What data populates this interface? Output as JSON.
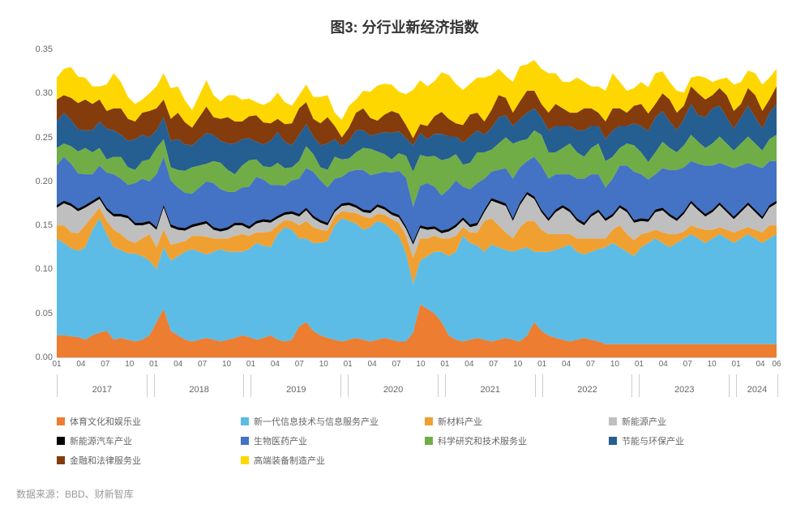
{
  "title": "图3: 分行业新经济指数",
  "source": "数据来源：BBD、财新智库",
  "chart": {
    "type": "area-stacked",
    "ylim": [
      0,
      0.35
    ],
    "ytick_step": 0.05,
    "yticks": [
      "0.00",
      "0.05",
      "0.10",
      "0.15",
      "0.20",
      "0.25",
      "0.30",
      "0.35"
    ],
    "background_color": "#ffffff",
    "grid_color": "#e0e0e0",
    "label_fontsize": 11,
    "title_fontsize": 18,
    "years": [
      {
        "label": "2017",
        "months": [
          "01",
          "04",
          "07",
          "10"
        ]
      },
      {
        "label": "2018",
        "months": [
          "01",
          "04",
          "07",
          "10"
        ]
      },
      {
        "label": "2019",
        "months": [
          "01",
          "04",
          "07",
          "10"
        ]
      },
      {
        "label": "2020",
        "months": [
          "01",
          "04",
          "07",
          "10"
        ]
      },
      {
        "label": "2021",
        "months": [
          "01",
          "04",
          "07",
          "10"
        ]
      },
      {
        "label": "2022",
        "months": [
          "01",
          "04",
          "07",
          "10"
        ]
      },
      {
        "label": "2023",
        "months": [
          "01",
          "04",
          "07",
          "10"
        ]
      },
      {
        "label": "2024",
        "months": [
          "01",
          "04",
          "06"
        ]
      }
    ],
    "n_points": 102,
    "series": [
      {
        "name": "体育文化和娱乐业",
        "color": "#ed7d31"
      },
      {
        "name": "新一代信息技术与信息服务产业",
        "color": "#5cbce6"
      },
      {
        "name": "新材料产业",
        "color": "#f0a030"
      },
      {
        "name": "新能源产业",
        "color": "#bfbfbf"
      },
      {
        "name": "新能源汽车产业",
        "color": "#000000"
      },
      {
        "name": "生物医药产业",
        "color": "#4472c4"
      },
      {
        "name": "科学研究和技术服务业",
        "color": "#70ad47"
      },
      {
        "name": "节能与环保产业",
        "color": "#255e91"
      },
      {
        "name": "金融和法律服务业",
        "color": "#843c0c"
      },
      {
        "name": "高端装备制造产业",
        "color": "#ffd700"
      }
    ],
    "data": [
      [
        0.025,
        0.025,
        0.024,
        0.023,
        0.02,
        0.025,
        0.028,
        0.03,
        0.02,
        0.022,
        0.02,
        0.018,
        0.02,
        0.025,
        0.04,
        0.055,
        0.03,
        0.025,
        0.02,
        0.018,
        0.02,
        0.022,
        0.02,
        0.018,
        0.02,
        0.022,
        0.025,
        0.023,
        0.02,
        0.022,
        0.025,
        0.02,
        0.018,
        0.02,
        0.035,
        0.04,
        0.03,
        0.025,
        0.022,
        0.02,
        0.018,
        0.02,
        0.022,
        0.02,
        0.018,
        0.02,
        0.022,
        0.02,
        0.018,
        0.018,
        0.028,
        0.06,
        0.055,
        0.05,
        0.04,
        0.025,
        0.02,
        0.018,
        0.02,
        0.022,
        0.02,
        0.018,
        0.02,
        0.022,
        0.02,
        0.018,
        0.025,
        0.04,
        0.03,
        0.025,
        0.022,
        0.02,
        0.018,
        0.02,
        0.022,
        0.02,
        0.018,
        0.015,
        0.015,
        0.015,
        0.015,
        0.015,
        0.015,
        0.015,
        0.015,
        0.015,
        0.015,
        0.015,
        0.015,
        0.015,
        0.015,
        0.015,
        0.015,
        0.015,
        0.015,
        0.015,
        0.015,
        0.015,
        0.015,
        0.015,
        0.015,
        0.015
      ],
      [
        0.11,
        0.105,
        0.1,
        0.098,
        0.105,
        0.12,
        0.13,
        0.11,
        0.105,
        0.1,
        0.098,
        0.1,
        0.095,
        0.085,
        0.06,
        0.07,
        0.08,
        0.09,
        0.1,
        0.105,
        0.1,
        0.095,
        0.1,
        0.105,
        0.1,
        0.098,
        0.095,
        0.1,
        0.11,
        0.105,
        0.1,
        0.12,
        0.13,
        0.125,
        0.1,
        0.095,
        0.1,
        0.105,
        0.11,
        0.13,
        0.14,
        0.135,
        0.13,
        0.125,
        0.13,
        0.135,
        0.13,
        0.125,
        0.12,
        0.1,
        0.055,
        0.05,
        0.06,
        0.07,
        0.08,
        0.09,
        0.1,
        0.12,
        0.11,
        0.105,
        0.1,
        0.11,
        0.105,
        0.1,
        0.1,
        0.105,
        0.1,
        0.08,
        0.09,
        0.095,
        0.1,
        0.105,
        0.11,
        0.1,
        0.095,
        0.1,
        0.105,
        0.11,
        0.115,
        0.11,
        0.105,
        0.1,
        0.11,
        0.115,
        0.12,
        0.115,
        0.11,
        0.115,
        0.12,
        0.125,
        0.12,
        0.115,
        0.12,
        0.125,
        0.12,
        0.115,
        0.12,
        0.125,
        0.12,
        0.115,
        0.12,
        0.125
      ],
      [
        0.015,
        0.02,
        0.018,
        0.02,
        0.025,
        0.015,
        0.012,
        0.015,
        0.02,
        0.018,
        0.015,
        0.012,
        0.02,
        0.03,
        0.025,
        0.02,
        0.018,
        0.015,
        0.012,
        0.015,
        0.018,
        0.02,
        0.015,
        0.012,
        0.015,
        0.018,
        0.02,
        0.015,
        0.012,
        0.015,
        0.018,
        0.01,
        0.008,
        0.01,
        0.015,
        0.02,
        0.018,
        0.015,
        0.012,
        0.01,
        0.008,
        0.01,
        0.012,
        0.015,
        0.01,
        0.008,
        0.01,
        0.012,
        0.015,
        0.02,
        0.03,
        0.025,
        0.02,
        0.018,
        0.015,
        0.02,
        0.018,
        0.01,
        0.012,
        0.015,
        0.035,
        0.03,
        0.025,
        0.02,
        0.015,
        0.025,
        0.03,
        0.035,
        0.025,
        0.02,
        0.018,
        0.015,
        0.012,
        0.015,
        0.018,
        0.015,
        0.012,
        0.01,
        0.015,
        0.025,
        0.02,
        0.018,
        0.015,
        0.012,
        0.01,
        0.012,
        0.015,
        0.01,
        0.008,
        0.01,
        0.012,
        0.015,
        0.01,
        0.008,
        0.01,
        0.012,
        0.01,
        0.008,
        0.01,
        0.012,
        0.015,
        0.01
      ],
      [
        0.02,
        0.025,
        0.03,
        0.025,
        0.02,
        0.015,
        0.01,
        0.012,
        0.015,
        0.02,
        0.025,
        0.02,
        0.015,
        0.012,
        0.02,
        0.025,
        0.02,
        0.015,
        0.012,
        0.01,
        0.012,
        0.015,
        0.01,
        0.008,
        0.01,
        0.012,
        0.01,
        0.008,
        0.01,
        0.012,
        0.01,
        0.008,
        0.006,
        0.008,
        0.01,
        0.012,
        0.01,
        0.008,
        0.006,
        0.005,
        0.006,
        0.008,
        0.006,
        0.005,
        0.006,
        0.008,
        0.006,
        0.005,
        0.006,
        0.008,
        0.015,
        0.012,
        0.01,
        0.008,
        0.006,
        0.008,
        0.01,
        0.008,
        0.006,
        0.008,
        0.01,
        0.02,
        0.025,
        0.03,
        0.02,
        0.025,
        0.03,
        0.025,
        0.02,
        0.015,
        0.025,
        0.03,
        0.025,
        0.02,
        0.015,
        0.025,
        0.03,
        0.02,
        0.015,
        0.02,
        0.025,
        0.02,
        0.015,
        0.012,
        0.02,
        0.025,
        0.02,
        0.015,
        0.02,
        0.025,
        0.02,
        0.015,
        0.02,
        0.025,
        0.02,
        0.015,
        0.02,
        0.025,
        0.02,
        0.015,
        0.02,
        0.025
      ],
      [
        0.003,
        0.003,
        0.003,
        0.003,
        0.003,
        0.003,
        0.003,
        0.003,
        0.003,
        0.003,
        0.003,
        0.003,
        0.003,
        0.003,
        0.003,
        0.003,
        0.003,
        0.003,
        0.003,
        0.003,
        0.003,
        0.003,
        0.003,
        0.003,
        0.003,
        0.003,
        0.003,
        0.003,
        0.003,
        0.003,
        0.003,
        0.003,
        0.003,
        0.003,
        0.003,
        0.003,
        0.003,
        0.003,
        0.003,
        0.003,
        0.003,
        0.003,
        0.003,
        0.003,
        0.003,
        0.003,
        0.003,
        0.003,
        0.003,
        0.003,
        0.003,
        0.003,
        0.003,
        0.003,
        0.003,
        0.003,
        0.003,
        0.003,
        0.003,
        0.003,
        0.003,
        0.003,
        0.003,
        0.003,
        0.003,
        0.003,
        0.003,
        0.003,
        0.003,
        0.003,
        0.003,
        0.003,
        0.003,
        0.003,
        0.003,
        0.003,
        0.003,
        0.003,
        0.003,
        0.003,
        0.003,
        0.003,
        0.003,
        0.003,
        0.003,
        0.003,
        0.003,
        0.003,
        0.003,
        0.003,
        0.003,
        0.003,
        0.003,
        0.003,
        0.003,
        0.003,
        0.003,
        0.003,
        0.003,
        0.003,
        0.003,
        0.003
      ],
      [
        0.045,
        0.05,
        0.045,
        0.04,
        0.035,
        0.03,
        0.035,
        0.04,
        0.045,
        0.04,
        0.035,
        0.045,
        0.05,
        0.045,
        0.06,
        0.055,
        0.05,
        0.045,
        0.04,
        0.035,
        0.04,
        0.045,
        0.05,
        0.045,
        0.04,
        0.035,
        0.04,
        0.045,
        0.05,
        0.045,
        0.04,
        0.035,
        0.03,
        0.035,
        0.04,
        0.045,
        0.05,
        0.045,
        0.04,
        0.035,
        0.03,
        0.035,
        0.04,
        0.045,
        0.04,
        0.035,
        0.04,
        0.045,
        0.05,
        0.055,
        0.04,
        0.045,
        0.05,
        0.045,
        0.04,
        0.045,
        0.05,
        0.035,
        0.04,
        0.045,
        0.035,
        0.03,
        0.035,
        0.04,
        0.045,
        0.04,
        0.035,
        0.045,
        0.05,
        0.045,
        0.04,
        0.035,
        0.04,
        0.045,
        0.05,
        0.045,
        0.04,
        0.035,
        0.04,
        0.045,
        0.05,
        0.055,
        0.05,
        0.045,
        0.04,
        0.045,
        0.05,
        0.055,
        0.05,
        0.045,
        0.05,
        0.055,
        0.05,
        0.045,
        0.05,
        0.055,
        0.05,
        0.045,
        0.05,
        0.055,
        0.05,
        0.045
      ],
      [
        0.02,
        0.015,
        0.02,
        0.025,
        0.03,
        0.025,
        0.02,
        0.015,
        0.02,
        0.025,
        0.02,
        0.015,
        0.02,
        0.025,
        0.03,
        0.02,
        0.015,
        0.02,
        0.025,
        0.03,
        0.025,
        0.02,
        0.025,
        0.03,
        0.025,
        0.02,
        0.025,
        0.03,
        0.02,
        0.015,
        0.02,
        0.025,
        0.02,
        0.015,
        0.02,
        0.025,
        0.02,
        0.015,
        0.02,
        0.025,
        0.02,
        0.015,
        0.02,
        0.025,
        0.03,
        0.025,
        0.02,
        0.015,
        0.02,
        0.025,
        0.04,
        0.035,
        0.03,
        0.035,
        0.04,
        0.035,
        0.03,
        0.025,
        0.03,
        0.035,
        0.03,
        0.025,
        0.03,
        0.035,
        0.04,
        0.03,
        0.025,
        0.03,
        0.035,
        0.03,
        0.025,
        0.03,
        0.035,
        0.03,
        0.025,
        0.03,
        0.035,
        0.03,
        0.025,
        0.02,
        0.025,
        0.03,
        0.025,
        0.02,
        0.025,
        0.03,
        0.025,
        0.02,
        0.025,
        0.03,
        0.025,
        0.02,
        0.025,
        0.03,
        0.025,
        0.02,
        0.025,
        0.03,
        0.025,
        0.02,
        0.025,
        0.03
      ],
      [
        0.03,
        0.035,
        0.03,
        0.025,
        0.02,
        0.025,
        0.03,
        0.035,
        0.03,
        0.025,
        0.03,
        0.035,
        0.03,
        0.025,
        0.02,
        0.025,
        0.03,
        0.035,
        0.03,
        0.025,
        0.03,
        0.035,
        0.03,
        0.025,
        0.03,
        0.035,
        0.03,
        0.025,
        0.02,
        0.025,
        0.03,
        0.035,
        0.03,
        0.025,
        0.03,
        0.025,
        0.02,
        0.025,
        0.03,
        0.02,
        0.015,
        0.02,
        0.025,
        0.02,
        0.015,
        0.02,
        0.025,
        0.03,
        0.025,
        0.02,
        0.03,
        0.025,
        0.02,
        0.025,
        0.03,
        0.025,
        0.02,
        0.025,
        0.03,
        0.025,
        0.02,
        0.025,
        0.03,
        0.025,
        0.02,
        0.025,
        0.03,
        0.025,
        0.02,
        0.025,
        0.03,
        0.025,
        0.02,
        0.025,
        0.03,
        0.025,
        0.02,
        0.025,
        0.03,
        0.025,
        0.02,
        0.025,
        0.03,
        0.035,
        0.04,
        0.035,
        0.03,
        0.025,
        0.03,
        0.035,
        0.03,
        0.035,
        0.04,
        0.035,
        0.03,
        0.025,
        0.03,
        0.035,
        0.03,
        0.025,
        0.03,
        0.035
      ],
      [
        0.025,
        0.02,
        0.025,
        0.03,
        0.035,
        0.03,
        0.025,
        0.02,
        0.025,
        0.03,
        0.025,
        0.02,
        0.025,
        0.03,
        0.025,
        0.02,
        0.025,
        0.03,
        0.025,
        0.02,
        0.025,
        0.03,
        0.02,
        0.025,
        0.03,
        0.025,
        0.02,
        0.025,
        0.03,
        0.025,
        0.02,
        0.015,
        0.02,
        0.025,
        0.03,
        0.025,
        0.02,
        0.025,
        0.03,
        0.015,
        0.01,
        0.015,
        0.02,
        0.025,
        0.02,
        0.015,
        0.02,
        0.025,
        0.02,
        0.015,
        0.008,
        0.01,
        0.015,
        0.02,
        0.025,
        0.02,
        0.015,
        0.02,
        0.025,
        0.02,
        0.015,
        0.02,
        0.025,
        0.02,
        0.015,
        0.02,
        0.025,
        0.02,
        0.015,
        0.02,
        0.025,
        0.02,
        0.015,
        0.02,
        0.025,
        0.02,
        0.015,
        0.02,
        0.025,
        0.02,
        0.015,
        0.02,
        0.025,
        0.02,
        0.015,
        0.02,
        0.025,
        0.02,
        0.015,
        0.02,
        0.025,
        0.02,
        0.015,
        0.02,
        0.025,
        0.02,
        0.015,
        0.02,
        0.025,
        0.02,
        0.015,
        0.02
      ],
      [
        0.025,
        0.03,
        0.035,
        0.03,
        0.025,
        0.02,
        0.015,
        0.03,
        0.04,
        0.03,
        0.025,
        0.02,
        0.015,
        0.02,
        0.025,
        0.03,
        0.035,
        0.03,
        0.025,
        0.02,
        0.025,
        0.03,
        0.025,
        0.02,
        0.025,
        0.03,
        0.025,
        0.02,
        0.015,
        0.02,
        0.025,
        0.03,
        0.025,
        0.02,
        0.015,
        0.02,
        0.025,
        0.03,
        0.025,
        0.015,
        0.02,
        0.025,
        0.015,
        0.02,
        0.03,
        0.04,
        0.035,
        0.03,
        0.025,
        0.035,
        0.055,
        0.05,
        0.045,
        0.04,
        0.045,
        0.05,
        0.045,
        0.04,
        0.035,
        0.04,
        0.05,
        0.04,
        0.03,
        0.025,
        0.035,
        0.04,
        0.03,
        0.035,
        0.04,
        0.045,
        0.035,
        0.03,
        0.035,
        0.04,
        0.03,
        0.025,
        0.03,
        0.035,
        0.04,
        0.03,
        0.025,
        0.02,
        0.025,
        0.03,
        0.035,
        0.025,
        0.02,
        0.025,
        0.015,
        0.01,
        0.02,
        0.025,
        0.015,
        0.01,
        0.02,
        0.03,
        0.025,
        0.02,
        0.025,
        0.03,
        0.025,
        0.02
      ]
    ]
  }
}
